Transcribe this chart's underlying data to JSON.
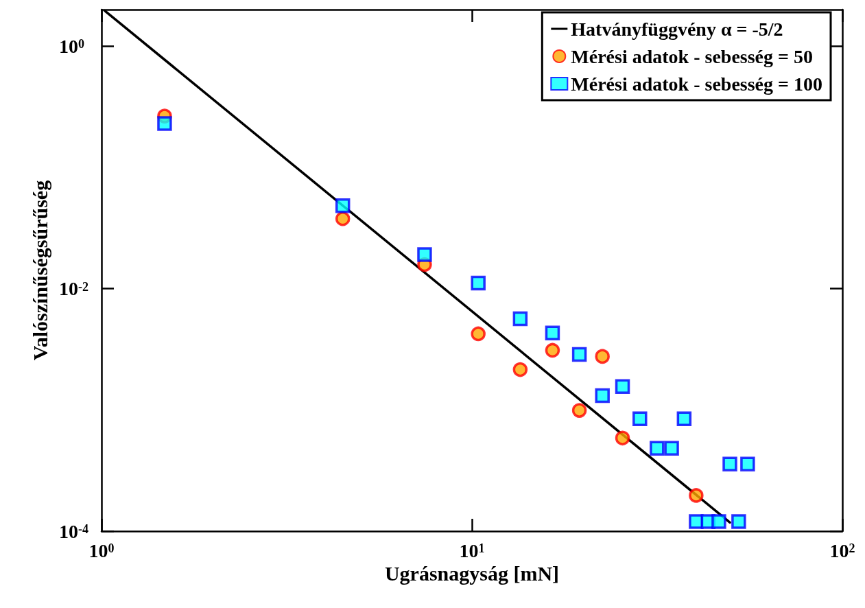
{
  "chart_data": {
    "type": "scatter",
    "xlabel": "Ugrásnagyság [mN]",
    "ylabel": "Valószínűségsűrűség",
    "log": "xy",
    "grid": false,
    "legend": "top right",
    "xlim": [
      1,
      100
    ],
    "xticks": [
      {
        "value": 1,
        "label": "10$^{0}$"
      },
      {
        "value": 10,
        "label": "10$^{1}$"
      },
      {
        "value": 100,
        "label": "10$^{2}$"
      }
    ],
    "ylim": [
      0.0001,
      2
    ],
    "yticks": [
      {
        "value": 0.0001,
        "label": "10$^{-4}$"
      },
      {
        "value": 0.01,
        "label": "10$^{-2}$"
      },
      {
        "value": 1,
        "label": "10$^{0}$"
      }
    ],
    "series": [
      {
        "name": "Hatványfüggvény α = -5/2",
        "type": "line",
        "color": "#000000",
        "marker": "none",
        "line_style": "solid",
        "x": [
          1.02,
          49.7
        ],
        "values": [
          1.96,
          0.000118
        ]
      },
      {
        "name": "Mérési adatok - sebesség = 50",
        "color": "#ffa500",
        "marker": "circle",
        "x": [
          1.48,
          4.48,
          7.45,
          10.4,
          13.5,
          16.5,
          19.5,
          22.5,
          25.5,
          40.3
        ],
        "values": [
          0.265,
          0.0377,
          0.0158,
          0.00424,
          0.00215,
          0.0031,
          0.00099,
          0.00276,
          0.000586,
          0.000197
        ]
      },
      {
        "name": "Mérési adatok - sebesség = 100",
        "color": "#00ffff",
        "marker": "square",
        "x": [
          1.48,
          4.48,
          7.45,
          10.4,
          13.5,
          16.5,
          19.5,
          22.5,
          25.5,
          28.4,
          31.6,
          34.6,
          37.4,
          40.3,
          43.4,
          46.4,
          49.7,
          52.5,
          55.5
        ],
        "values": [
          0.23,
          0.0483,
          0.0191,
          0.0111,
          0.00564,
          0.0043,
          0.00287,
          0.00131,
          0.00156,
          0.000845,
          0.000483,
          0.000483,
          0.000845,
          0.00012,
          0.00012,
          0.00012,
          0.000358,
          0.00012,
          0.000358
        ]
      }
    ]
  }
}
